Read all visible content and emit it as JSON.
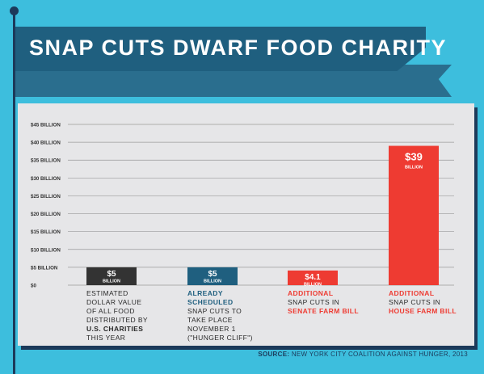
{
  "title": "SNAP CUTS DWARF FOOD CHARITY",
  "source_label": "SOURCE:",
  "source_text": "NEW YORK CITY COALITION AGAINST HUNGER, 2013",
  "colors": {
    "background": "#3dbedd",
    "banner": "#1f5f7f",
    "panel": "#e6e6e8",
    "bar_charity": "#333333",
    "bar_scheduled": "#1f5f7f",
    "bar_senate": "#ee3b32",
    "bar_house": "#ee3b32"
  },
  "chart_data": {
    "type": "bar",
    "ylim": [
      0,
      45
    ],
    "yticks": [
      0,
      5,
      10,
      15,
      20,
      25,
      30,
      35,
      40,
      45
    ],
    "ytick_labels": [
      "$0",
      "$5 BILLION",
      "$10 BILLION",
      "$15 BILLION",
      "$20 BILLION",
      "$25 BILLION",
      "$30 BILLION",
      "$35 BILLION",
      "$40 BILLION",
      "$45 BILLION"
    ],
    "grid": true,
    "categories": [
      "Estimated dollar value of all food distributed by U.S. charities this year",
      "Already scheduled SNAP cuts to take place November 1 (\"Hunger Cliff\")",
      "Additional SNAP cuts in Senate Farm Bill",
      "Additional SNAP cuts in House Farm Bill"
    ],
    "values": [
      5,
      5,
      4.1,
      39
    ],
    "value_labels": [
      "$5",
      "$5",
      "$4.1",
      "$39"
    ],
    "unit_label": "BILLION",
    "category_text": [
      {
        "lines": [
          {
            "t": "ESTIMATED",
            "b": false
          },
          {
            "t": "DOLLAR VALUE",
            "b": false
          },
          {
            "t": "OF ALL FOOD",
            "b": false
          },
          {
            "t": "DISTRIBUTED BY",
            "b": false
          },
          {
            "t": "U.S. CHARITIES",
            "b": true
          },
          {
            "t": "THIS YEAR",
            "b": false
          }
        ],
        "color": "#2a2a2a"
      },
      {
        "lines": [
          {
            "t": "ALREADY",
            "b": true
          },
          {
            "t": "SCHEDULED",
            "b": true
          },
          {
            "t": "SNAP CUTS TO",
            "b": false
          },
          {
            "t": "TAKE PLACE",
            "b": false
          },
          {
            "t": "NOVEMBER 1",
            "b": false
          },
          {
            "t": "(\"HUNGER CLIFF\")",
            "b": false
          }
        ],
        "color": "#1f5f7f"
      },
      {
        "lines": [
          {
            "t": "ADDITIONAL",
            "b": true
          },
          {
            "t": "SNAP CUTS IN",
            "b": false
          },
          {
            "t": "SENATE FARM BILL",
            "b": true
          }
        ],
        "color": "#ee3b32"
      },
      {
        "lines": [
          {
            "t": "ADDITIONAL",
            "b": true
          },
          {
            "t": "SNAP CUTS IN",
            "b": false
          },
          {
            "t": "HOUSE FARM BILL",
            "b": true
          }
        ],
        "color": "#ee3b32"
      }
    ]
  }
}
